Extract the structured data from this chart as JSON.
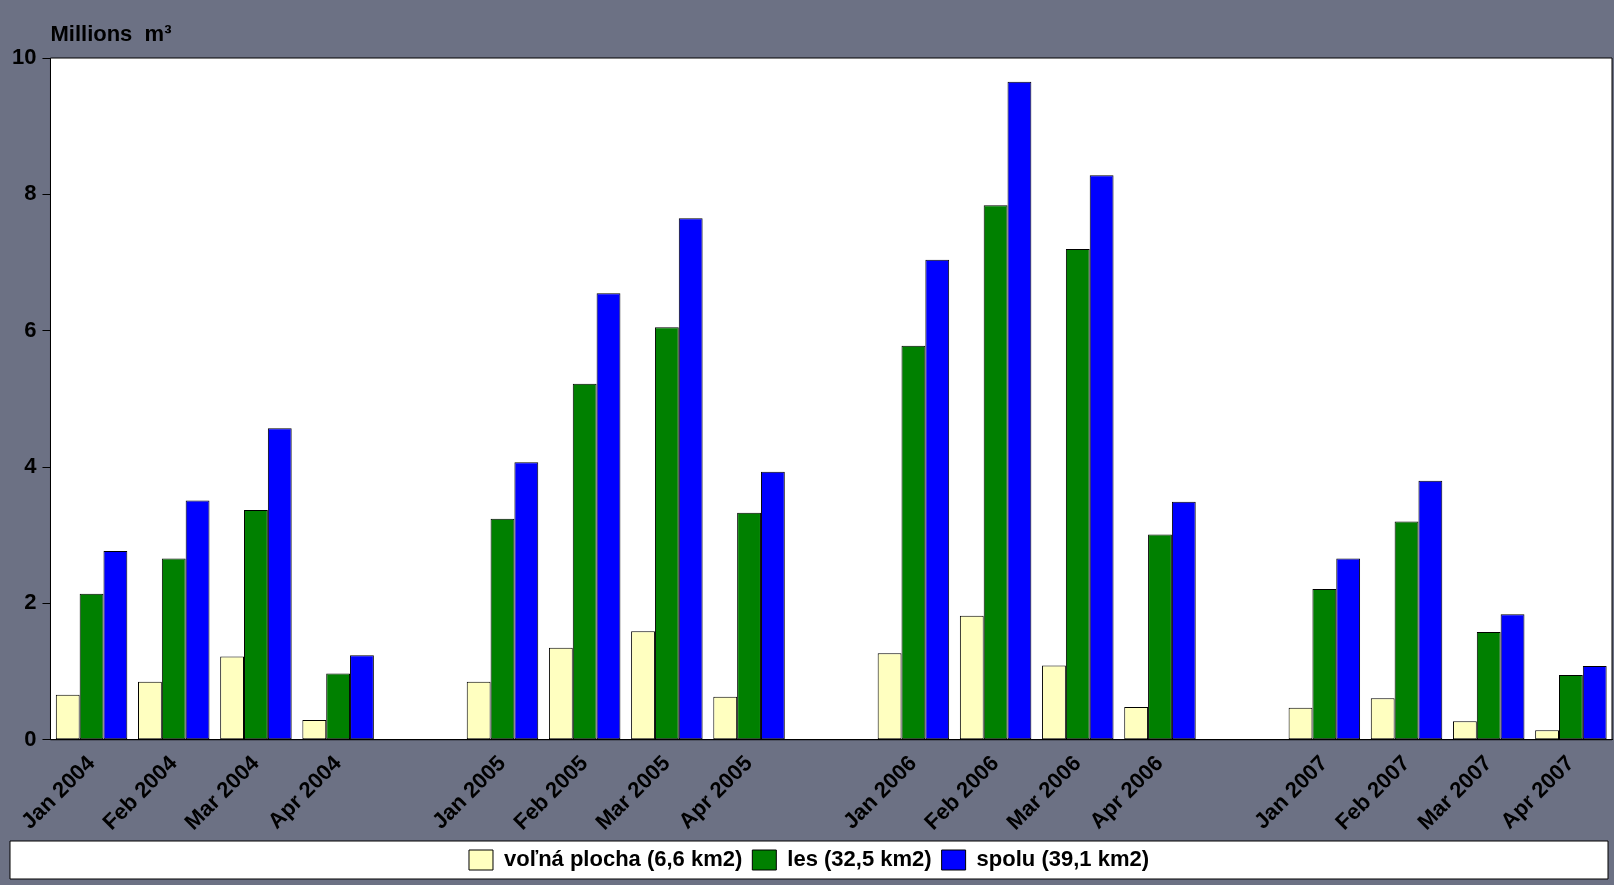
{
  "chart_data": {
    "type": "bar",
    "ylabel": "Millions  m³",
    "categories": [
      "Jan 2004",
      "Feb 2004",
      "Mar 2004",
      "Apr 2004",
      null,
      "Jan 2005",
      "Feb 2005",
      "Mar 2005",
      "Apr 2005",
      null,
      "Jan 2006",
      "Feb 2006",
      "Mar 2006",
      "Apr 2006",
      null,
      "Jan 2007",
      "Feb 2007",
      "Mar 2007",
      "Apr 2007"
    ],
    "series": [
      {
        "name": "voľná plocha (6,6 km2)",
        "color": "#ffffc0",
        "values": [
          0.66,
          0.85,
          1.22,
          0.29,
          0,
          0.85,
          1.35,
          1.59,
          0.63,
          0,
          1.27,
          1.82,
          1.09,
          0.48,
          0,
          0.47,
          0.61,
          0.27,
          0.14
        ]
      },
      {
        "name": "les (32,5 km2)",
        "color": "#008000",
        "values": [
          2.14,
          2.66,
          3.37,
          0.97,
          0,
          3.24,
          5.22,
          6.05,
          3.33,
          0,
          5.78,
          7.84,
          7.2,
          3.01,
          0,
          2.21,
          3.2,
          1.58,
          0.95
        ]
      },
      {
        "name": "spolu (39,1 km2)",
        "color": "#0000ff",
        "values": [
          2.77,
          3.51,
          4.57,
          1.24,
          0,
          4.07,
          6.55,
          7.65,
          3.93,
          0,
          7.04,
          9.65,
          8.28,
          3.49,
          0,
          2.66,
          3.8,
          1.84,
          1.08
        ]
      }
    ],
    "ylim": [
      0,
      10
    ],
    "yticks": [
      0,
      2,
      4,
      6,
      8,
      10
    ],
    "grid": false,
    "legend": "bottom"
  }
}
